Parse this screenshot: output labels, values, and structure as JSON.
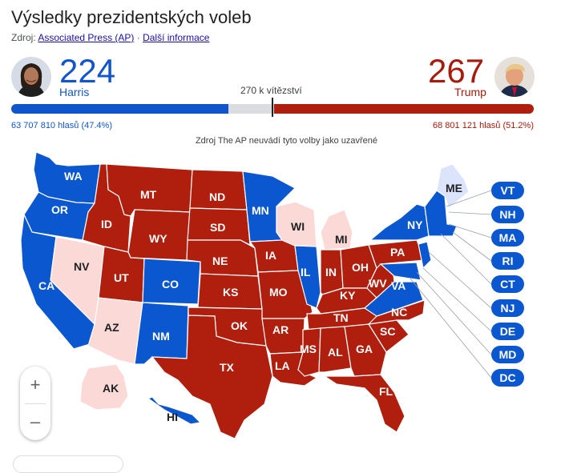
{
  "title": "Výsledky prezidentských voleb",
  "source_label": "Zdroj:",
  "source_link": "Associated Press (AP)",
  "separator": "·",
  "more_info": "Další informace",
  "harris": {
    "votes": "224",
    "name": "Harris",
    "popular": "63 707 810 hlasů (47.4%)",
    "color": "#1155cc",
    "electoral": 224
  },
  "trump": {
    "votes": "267",
    "name": "Trump",
    "popular": "68 801 121 hlasů (51.2%)",
    "color": "#a61b0b",
    "electoral": 267
  },
  "to_win": "270 k vítězství",
  "to_win_value": 270,
  "total_electoral": 538,
  "note": "Zdroj The AP neuvádí tyto volby jako uzavřené",
  "states": {
    "WA": "WA",
    "OR": "OR",
    "CA": "CA",
    "NV": "NV",
    "ID": "ID",
    "MT": "MT",
    "WY": "WY",
    "UT": "UT",
    "AZ": "AZ",
    "CO": "CO",
    "NM": "NM",
    "ND": "ND",
    "SD": "SD",
    "NE": "NE",
    "KS": "KS",
    "OK": "OK",
    "TX": "TX",
    "MN": "MN",
    "IA": "IA",
    "MO": "MO",
    "AR": "AR",
    "LA": "LA",
    "WI": "WI",
    "IL": "IL",
    "MI": "MI",
    "IN": "IN",
    "KY": "KY",
    "TN": "TN",
    "MS": "MS",
    "AL": "AL",
    "GA": "GA",
    "FL": "FL",
    "SC": "SC",
    "NC": "NC",
    "VA": "VA",
    "WV": "WV",
    "OH": "OH",
    "PA": "PA",
    "NY": "NY",
    "ME": "ME",
    "AK": "AK",
    "HI": "HI"
  },
  "small_states": [
    "VT",
    "NH",
    "MA",
    "RI",
    "CT",
    "NJ",
    "DE",
    "MD",
    "DC"
  ],
  "zoom": {
    "in": "+",
    "out": "–"
  },
  "colors": {
    "dem": "#0b57d0",
    "rep": "#b01e0e",
    "lean_dem": "#dce4fb",
    "lean_rep": "#fbd9d6"
  }
}
